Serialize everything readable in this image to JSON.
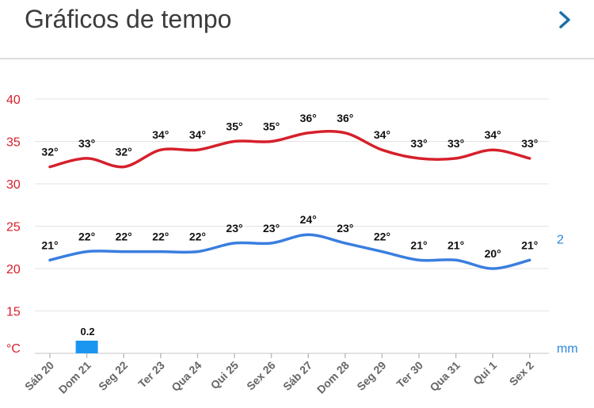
{
  "header": {
    "title": "Gráficos de tempo",
    "next_icon": "chevron-right-icon"
  },
  "chart_data": {
    "type": "line",
    "categories": [
      "Sáb 20",
      "Dom 21",
      "Seg 22",
      "Ter 23",
      "Qua 24",
      "Qui 25",
      "Sex 26",
      "Sáb 27",
      "Dom 28",
      "Seg 29",
      "Ter 30",
      "Qua 31",
      "Qui 1",
      "Sex 2"
    ],
    "y_ticks": [
      "40",
      "35",
      "30",
      "25",
      "20",
      "15"
    ],
    "ylim": [
      10,
      40
    ],
    "y_unit": "°C",
    "secondary_axis": {
      "tick": "2",
      "unit": "mm"
    },
    "grid": true,
    "series": [
      {
        "values": [
          32,
          33,
          32,
          34,
          34,
          35,
          35,
          36,
          36,
          34,
          33,
          33,
          34,
          33
        ],
        "labels": [
          "32°",
          "33°",
          "32°",
          "34°",
          "34°",
          "35°",
          "35°",
          "36°",
          "36°",
          "34°",
          "33°",
          "33°",
          "34°",
          "33°"
        ],
        "color": "#d6202c"
      },
      {
        "values": [
          21,
          22,
          22,
          22,
          22,
          23,
          23,
          24,
          23,
          22,
          21,
          21,
          20,
          21
        ],
        "labels": [
          "21°",
          "22°",
          "22°",
          "22°",
          "22°",
          "23°",
          "23°",
          "24°",
          "23°",
          "22°",
          "21°",
          "21°",
          "20°",
          "21°"
        ],
        "color": "#3a7ee0"
      }
    ],
    "precipitation": {
      "values": [
        null,
        0.2,
        null,
        null,
        null,
        null,
        null,
        null,
        null,
        null,
        null,
        null,
        null,
        null
      ],
      "labels": [
        "",
        "0.2",
        "",
        "",
        "",
        "",
        "",
        "",
        "",
        "",
        "",
        "",
        "",
        ""
      ],
      "color": "#1a96f0"
    }
  }
}
